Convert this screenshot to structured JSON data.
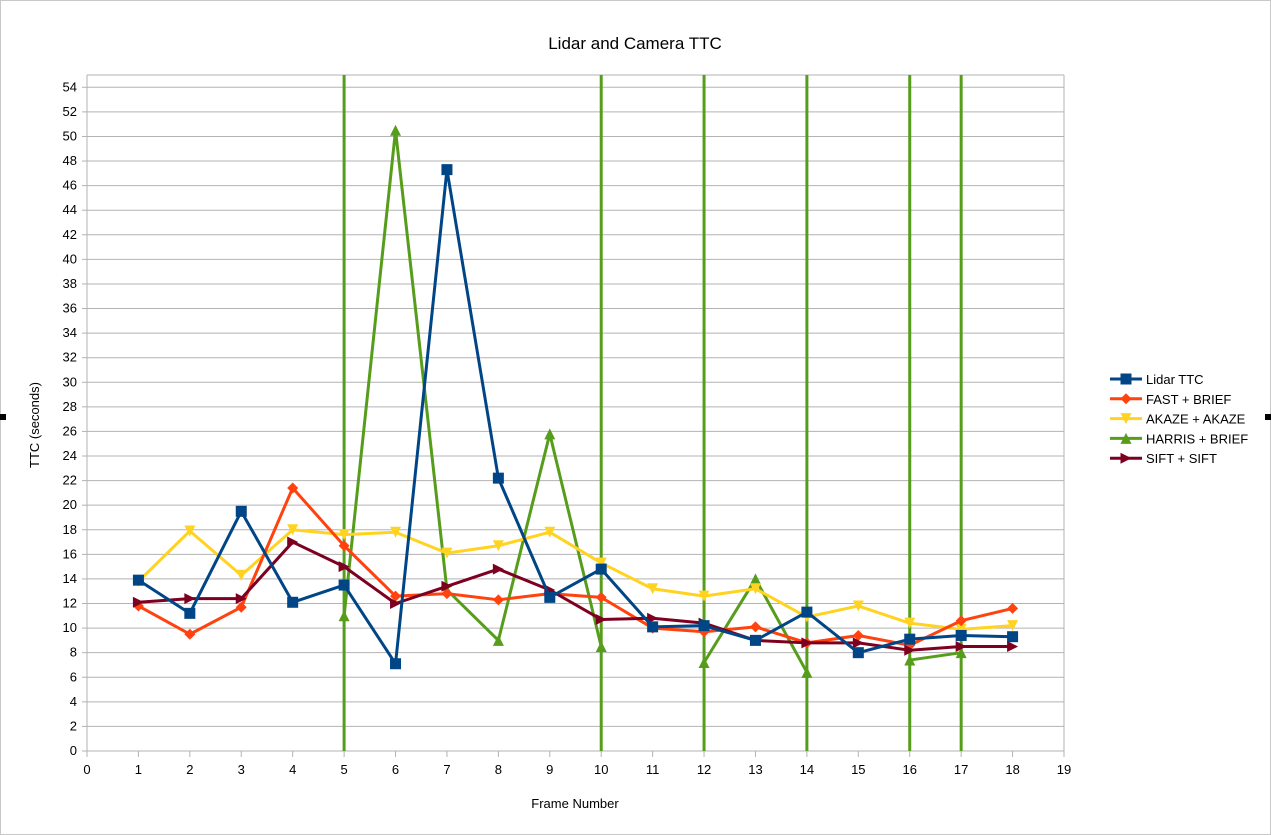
{
  "chart_data": {
    "type": "line",
    "title": "Lidar and Camera TTC",
    "xlabel": "Frame Number",
    "ylabel": "TTC (seconds)",
    "xlim": [
      0,
      19
    ],
    "ylim": [
      0,
      55
    ],
    "x_ticks": [
      0,
      1,
      2,
      3,
      4,
      5,
      6,
      7,
      8,
      9,
      10,
      11,
      12,
      13,
      14,
      15,
      16,
      17,
      18,
      19
    ],
    "y_ticks": [
      0,
      2,
      4,
      6,
      8,
      10,
      12,
      14,
      16,
      18,
      20,
      22,
      24,
      26,
      28,
      30,
      32,
      34,
      36,
      38,
      40,
      42,
      44,
      46,
      48,
      50,
      52,
      54
    ],
    "grid": true,
    "legend_position": "right",
    "x": [
      1,
      2,
      3,
      4,
      5,
      6,
      7,
      8,
      9,
      10,
      11,
      12,
      13,
      14,
      15,
      16,
      17,
      18
    ],
    "series": [
      {
        "name": "Lidar TTC",
        "color": "#004586",
        "marker": "square",
        "values": [
          13.9,
          11.2,
          19.5,
          12.1,
          13.5,
          7.1,
          47.3,
          22.2,
          12.5,
          14.8,
          10.1,
          10.2,
          9.0,
          11.3,
          8.0,
          9.1,
          9.4,
          9.3
        ]
      },
      {
        "name": "FAST + BRIEF",
        "color": "#ff420e",
        "marker": "diamond",
        "values": [
          11.8,
          9.5,
          11.7,
          21.4,
          16.7,
          12.6,
          12.8,
          12.3,
          12.8,
          12.5,
          10.0,
          9.7,
          10.1,
          8.8,
          9.4,
          8.6,
          10.6,
          11.6
        ]
      },
      {
        "name": "AKAZE + AKAZE",
        "color": "#ffd320",
        "marker": "triangle-down",
        "values": [
          13.8,
          17.9,
          14.3,
          18.0,
          17.6,
          17.8,
          16.1,
          16.7,
          17.8,
          15.3,
          13.2,
          12.6,
          13.2,
          10.9,
          11.8,
          10.4,
          9.9,
          10.2
        ]
      },
      {
        "name": "HARRIS + BRIEF",
        "color": "#579d1c",
        "marker": "triangle-up",
        "values": [
          null,
          null,
          null,
          null,
          11.0,
          50.5,
          13.1,
          9.0,
          25.8,
          8.5,
          null,
          7.2,
          14.0,
          6.4,
          null,
          7.4,
          8.0,
          null
        ],
        "vertical_spike_frames": [
          5,
          10,
          12,
          14,
          16,
          17
        ]
      },
      {
        "name": "SIFT + SIFT",
        "color": "#7e0021",
        "marker": "triangle-right",
        "values": [
          12.1,
          12.4,
          12.4,
          17.0,
          15.0,
          12.0,
          13.4,
          14.8,
          13.1,
          10.7,
          10.8,
          10.4,
          9.0,
          8.8,
          8.8,
          8.2,
          8.5,
          8.5
        ]
      }
    ]
  }
}
